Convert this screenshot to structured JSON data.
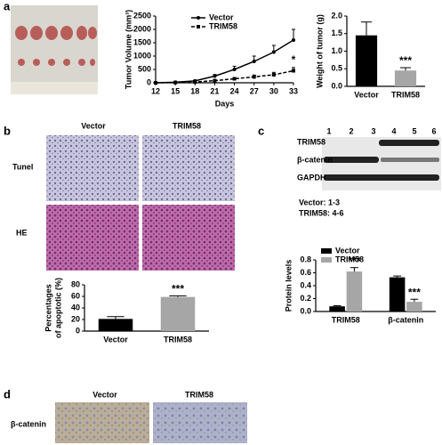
{
  "panels": {
    "a": "a",
    "b": "b",
    "c": "c",
    "d": "d"
  },
  "panel_b": {
    "columns": [
      "Vector",
      "TRIM58"
    ],
    "rows": [
      "Tunel",
      "HE"
    ]
  },
  "panel_c": {
    "lanes": [
      "1",
      "2",
      "3",
      "4",
      "5",
      "6"
    ],
    "blots": [
      "TRIM58",
      "β-catenin",
      "GAPDH"
    ],
    "notes": [
      "Vector: 1-3",
      "TRIM58: 4-6"
    ]
  },
  "panel_d": {
    "columns": [
      "Vector",
      "TRIM58"
    ],
    "rows": [
      "β-catenin"
    ]
  },
  "chart_data": [
    {
      "type": "line",
      "xlabel": "Days",
      "ylabel": "Tumor Volume (mm³)",
      "x": [
        12,
        15,
        18,
        21,
        24,
        27,
        30,
        33
      ],
      "xlim": [
        12,
        33
      ],
      "xticks": [
        12,
        15,
        18,
        21,
        24,
        27,
        30,
        33
      ],
      "ylim": [
        0,
        2500
      ],
      "yticks": [
        0,
        500,
        1000,
        1500,
        2000,
        2500
      ],
      "legend": "upper left",
      "annotation": "*",
      "series": [
        {
          "name": "Vector",
          "color": "#000000",
          "line_style": "solid",
          "marker": "circle",
          "values": [
            0,
            20,
            70,
            250,
            500,
            800,
            1150,
            1600
          ],
          "errors": [
            0,
            10,
            30,
            60,
            120,
            200,
            250,
            400
          ]
        },
        {
          "name": "TRIM58",
          "color": "#000000",
          "line_style": "dashed",
          "marker": "square",
          "values": [
            0,
            10,
            30,
            80,
            150,
            220,
            300,
            450
          ],
          "errors": [
            0,
            5,
            15,
            30,
            50,
            70,
            90,
            120
          ]
        }
      ]
    },
    {
      "type": "bar",
      "ylabel": "Weight of tumor (g)",
      "categories": [
        "Vector",
        "TRIM58"
      ],
      "values": [
        1.45,
        0.45
      ],
      "errors": [
        0.38,
        0.08
      ],
      "colors": [
        "#000000",
        "#a6a6a6"
      ],
      "annotation": "***",
      "ylim": [
        0,
        2
      ],
      "yticks": [
        {
          "value": 0,
          "label": "0.0"
        },
        {
          "value": 0.5,
          "label": "0.5"
        },
        {
          "value": 1,
          "label": "1.0"
        },
        {
          "value": 1.5,
          "label": "1.5"
        },
        {
          "value": 2,
          "label": "2.0"
        }
      ]
    },
    {
      "type": "bar",
      "ylabel": [
        "Percentages",
        "of apoptotic (%)"
      ],
      "categories": [
        "Vector",
        "TRIM58"
      ],
      "values": [
        21,
        59
      ],
      "errors": [
        4,
        2
      ],
      "colors": [
        "#000000",
        "#a6a6a6"
      ],
      "annotation": "***",
      "ylim": [
        0,
        80
      ],
      "yticks": [
        0,
        20,
        40,
        60,
        80
      ]
    },
    {
      "type": "bar",
      "ylabel": "Protein levels",
      "categories": [
        "TRIM58",
        "β-catenin"
      ],
      "legend": "upper left",
      "ylim": [
        0,
        0.8
      ],
      "yticks": [
        {
          "value": 0,
          "label": "0.0"
        },
        {
          "value": 0.2,
          "label": "0.2"
        },
        {
          "value": 0.4,
          "label": "0.4"
        },
        {
          "value": 0.6,
          "label": "0.6"
        },
        {
          "value": 0.8,
          "label": "0.8"
        }
      ],
      "series": [
        {
          "name": "Vector",
          "color": "#000000",
          "values": [
            0.08,
            0.53
          ],
          "errors": [
            0.01,
            0.02
          ]
        },
        {
          "name": "TRIM58",
          "color": "#a6a6a6",
          "values": [
            0.62,
            0.15
          ],
          "errors": [
            0.06,
            0.04
          ],
          "annotations": [
            "***",
            "***"
          ]
        }
      ]
    }
  ]
}
